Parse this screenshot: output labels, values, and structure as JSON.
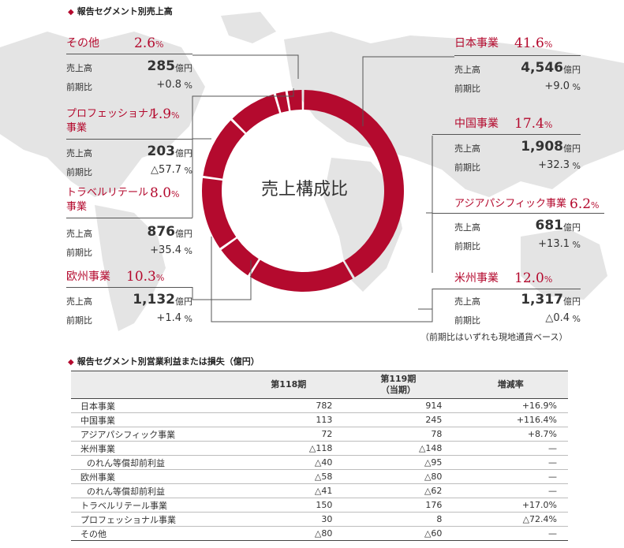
{
  "titles": {
    "composition": "報告セグメント別売上高",
    "profit": "報告セグメント別営業利益または損失（億円）"
  },
  "labels": {
    "sales": "売上高",
    "yoy": "前期比",
    "unit": "億円",
    "pct_unit": "%"
  },
  "center_label": "売上構成比",
  "note": "（前期比はいずれも現地通貨ベース）",
  "colors": {
    "accent": "#b40a2e",
    "map": "#e4e4e4"
  },
  "chart_data": {
    "type": "pie",
    "title": "",
    "slices": [
      {
        "name": "日本事業",
        "share": 41.6,
        "sales": "4,546",
        "yoy": "+9.0"
      },
      {
        "name": "中国事業",
        "share": 17.4,
        "sales": "1,908",
        "yoy": "+32.3"
      },
      {
        "name": "アジアパシフィック事業",
        "share": 6.2,
        "sales": "681",
        "yoy": "+13.1"
      },
      {
        "name": "米州事業",
        "share": 12.0,
        "sales": "1,317",
        "yoy": "△0.4"
      },
      {
        "name": "欧州事業",
        "share": 10.3,
        "sales": "1,132",
        "yoy": "+1.4"
      },
      {
        "name": "トラベルリテール事業",
        "share": 8.0,
        "sales": "876",
        "yoy": "+35.4"
      },
      {
        "name": "プロフェッショナル事業",
        "share": 1.9,
        "sales": "203",
        "yoy": "△57.7"
      },
      {
        "name": "その他",
        "share": 2.6,
        "sales": "285",
        "yoy": "+0.8"
      }
    ],
    "slice_labels": [
      {
        "name": "その他",
        "share": "2.6"
      },
      {
        "name": "プロフェッショナル\n事業",
        "share": "1.9"
      },
      {
        "name": "トラベルリテール\n事業",
        "share": "8.0"
      },
      {
        "name": "欧州事業",
        "share": "10.3"
      },
      {
        "name": "日本事業",
        "share": "41.6"
      },
      {
        "name": "中国事業",
        "share": "17.4"
      },
      {
        "name": "アジアパシフィック事業",
        "share": "6.2"
      },
      {
        "name": "米州事業",
        "share": "12.0"
      }
    ]
  },
  "table": {
    "headers": [
      "",
      "第118期",
      "第119期\n（当期）",
      "増減率"
    ],
    "rows": [
      {
        "label": "日本事業",
        "p118": "782",
        "p119": "914",
        "rate": "+16.9%",
        "sub": false
      },
      {
        "label": "中国事業",
        "p118": "113",
        "p119": "245",
        "rate": "+116.4%",
        "sub": false
      },
      {
        "label": "アジアパシフィック事業",
        "p118": "72",
        "p119": "78",
        "rate": "+8.7%",
        "sub": false
      },
      {
        "label": "米州事業",
        "p118": "△118",
        "p119": "△148",
        "rate": "—",
        "sub": false
      },
      {
        "label": "のれん等償却前利益",
        "p118": "△40",
        "p119": "△95",
        "rate": "—",
        "sub": true
      },
      {
        "label": "欧州事業",
        "p118": "△58",
        "p119": "△80",
        "rate": "—",
        "sub": false
      },
      {
        "label": "のれん等償却前利益",
        "p118": "△41",
        "p119": "△62",
        "rate": "—",
        "sub": true
      },
      {
        "label": "トラベルリテール事業",
        "p118": "150",
        "p119": "176",
        "rate": "+17.0%",
        "sub": false
      },
      {
        "label": "プロフェッショナル事業",
        "p118": "30",
        "p119": "8",
        "rate": "△72.4%",
        "sub": false
      },
      {
        "label": "その他",
        "p118": "△80",
        "p119": "△60",
        "rate": "—",
        "sub": false
      }
    ]
  }
}
